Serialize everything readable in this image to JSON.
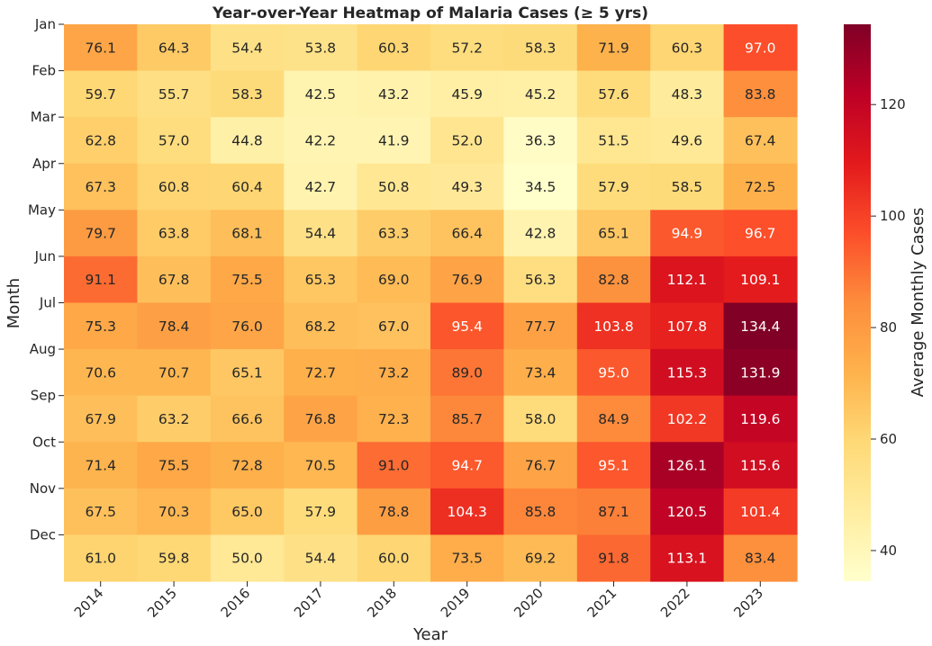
{
  "chart_data": {
    "type": "heatmap",
    "title": "Year-over-Year Heatmap of Malaria Cases (≥ 5 yrs)",
    "xlabel": "Year",
    "ylabel": "Month",
    "x": [
      "2014",
      "2015",
      "2016",
      "2017",
      "2018",
      "2019",
      "2020",
      "2021",
      "2022",
      "2023"
    ],
    "y": [
      "Jan",
      "Feb",
      "Mar",
      "Apr",
      "May",
      "Jun",
      "Jul",
      "Aug",
      "Sep",
      "Oct",
      "Nov",
      "Dec"
    ],
    "values": [
      [
        76.1,
        64.3,
        54.4,
        53.8,
        60.3,
        57.2,
        58.3,
        71.9,
        60.3,
        97.0
      ],
      [
        59.7,
        55.7,
        58.3,
        42.5,
        43.2,
        45.9,
        45.2,
        57.6,
        48.3,
        83.8
      ],
      [
        62.8,
        57.0,
        44.8,
        42.2,
        41.9,
        52.0,
        36.3,
        51.5,
        49.6,
        67.4
      ],
      [
        67.3,
        60.8,
        60.4,
        42.7,
        50.8,
        49.3,
        34.5,
        57.9,
        58.5,
        72.5
      ],
      [
        79.7,
        63.8,
        68.1,
        54.4,
        63.3,
        66.4,
        42.8,
        65.1,
        94.9,
        96.7
      ],
      [
        91.1,
        67.8,
        75.5,
        65.3,
        69.0,
        76.9,
        56.3,
        82.8,
        112.1,
        109.1
      ],
      [
        75.3,
        78.4,
        76.0,
        68.2,
        67.0,
        95.4,
        77.7,
        103.8,
        107.8,
        134.4
      ],
      [
        70.6,
        70.7,
        65.1,
        72.7,
        73.2,
        89.0,
        73.4,
        95.0,
        115.3,
        131.9
      ],
      [
        67.9,
        63.2,
        66.6,
        76.8,
        72.3,
        85.7,
        58.0,
        84.9,
        102.2,
        119.6
      ],
      [
        71.4,
        75.5,
        72.8,
        70.5,
        91.0,
        94.7,
        76.7,
        95.1,
        126.1,
        115.6
      ],
      [
        67.5,
        70.3,
        65.0,
        57.9,
        78.8,
        104.3,
        85.8,
        87.1,
        120.5,
        101.4
      ],
      [
        61.0,
        59.8,
        50.0,
        54.4,
        60.0,
        73.5,
        69.2,
        91.8,
        113.1,
        83.4
      ]
    ],
    "colorbar": {
      "label": "Average Monthly Cases",
      "range": [
        34.5,
        134.4
      ],
      "ticks": [
        40,
        60,
        80,
        100,
        120
      ]
    },
    "colormap": "YlOrRd"
  }
}
